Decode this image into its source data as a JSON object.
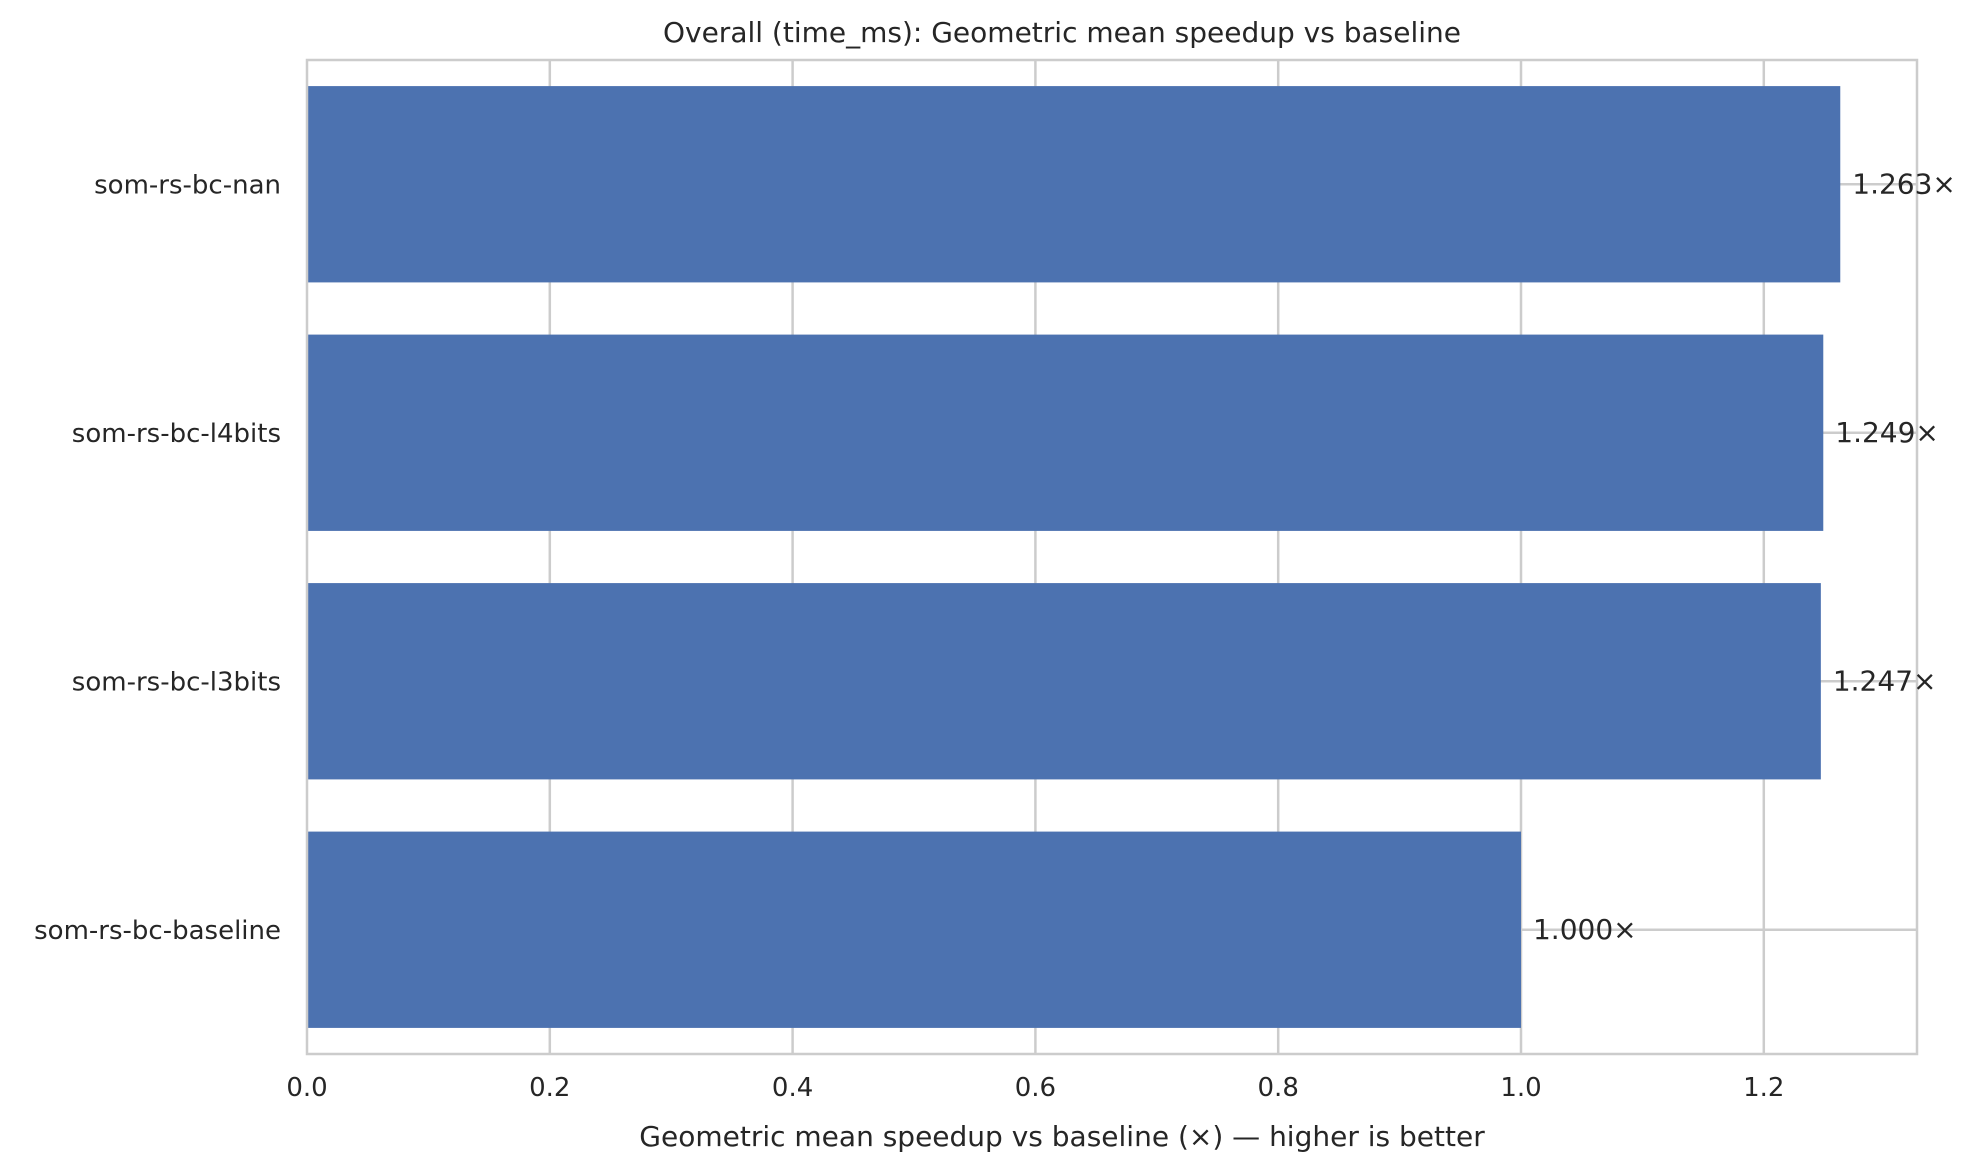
{
  "chart_data": {
    "type": "bar",
    "orientation": "horizontal",
    "title": "Overall (time_ms): Geometric mean speedup vs baseline",
    "xlabel": "Geometric mean speedup vs baseline (×) — higher is better",
    "ylabel": "",
    "categories": [
      "som-rs-bc-nan",
      "som-rs-bc-l4bits",
      "som-rs-bc-l3bits",
      "som-rs-bc-baseline"
    ],
    "values": [
      1.263,
      1.249,
      1.247,
      1.0
    ],
    "value_labels": [
      "1.263×",
      "1.249×",
      "1.247×",
      "1.000×"
    ],
    "xlim": [
      0,
      1.3262
    ],
    "xticks": [
      0.0,
      0.2,
      0.4,
      0.6,
      0.8,
      1.0,
      1.2
    ],
    "xtick_labels": [
      "0.0",
      "0.2",
      "0.4",
      "0.6",
      "0.8",
      "1.0",
      "1.2"
    ],
    "grid": true,
    "bar_color": "#4c72b0",
    "grid_color": "#cccccc",
    "text_color": "#262626"
  }
}
